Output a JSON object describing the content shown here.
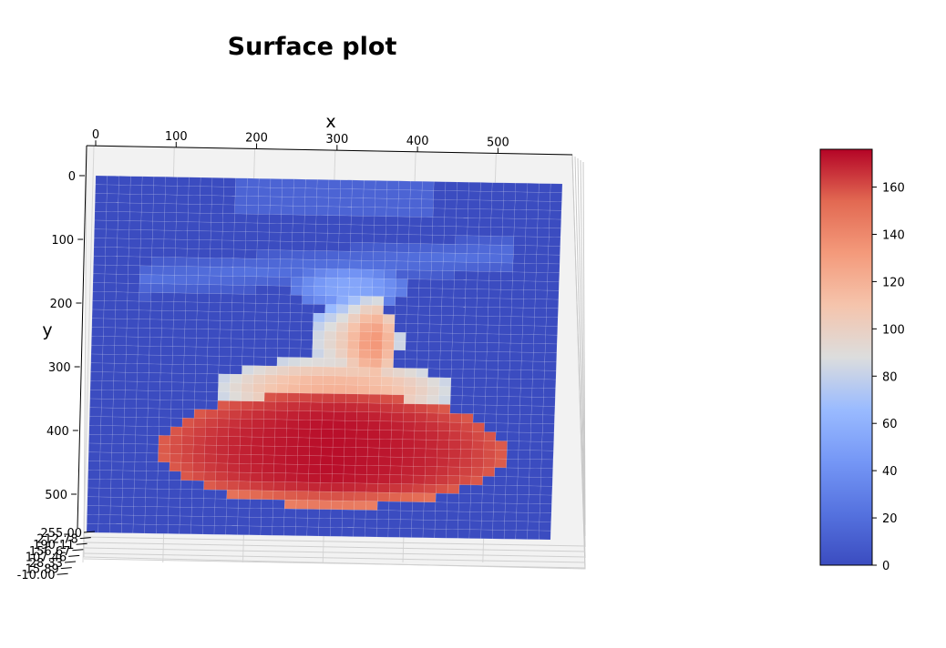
{
  "chart_data": {
    "type": "surface",
    "title": "Surface plot",
    "xlabel": "x",
    "ylabel": "y",
    "x_ticks": [
      0,
      100,
      200,
      300,
      400,
      500
    ],
    "y_ticks": [
      0,
      100,
      200,
      300,
      400,
      500
    ],
    "z_tick_labels": [
      "255.00",
      "212.78",
      "190.11",
      "156.67",
      "107.46",
      "28.33",
      "15.89",
      "-10.00"
    ],
    "xlim": [
      0,
      580
    ],
    "ylim": [
      0,
      560
    ],
    "colormap": "coolwarm",
    "colorbar": {
      "min": 0,
      "max": 176,
      "ticks": [
        0,
        20,
        40,
        60,
        80,
        100,
        120,
        140,
        160
      ]
    },
    "surface_shape": "bell-shaped bright region centered near x=300, y=420, peak value about 176, with a narrow neck near x=330, y=200-300 and a faint diagonal streak near y=100-150",
    "grid": true
  }
}
